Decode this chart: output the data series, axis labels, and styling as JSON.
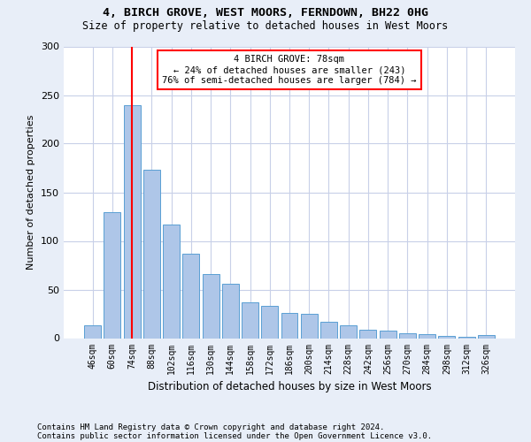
{
  "title1": "4, BIRCH GROVE, WEST MOORS, FERNDOWN, BH22 0HG",
  "title2": "Size of property relative to detached houses in West Moors",
  "xlabel": "Distribution of detached houses by size in West Moors",
  "ylabel": "Number of detached properties",
  "footnote1": "Contains HM Land Registry data © Crown copyright and database right 2024.",
  "footnote2": "Contains public sector information licensed under the Open Government Licence v3.0.",
  "categories": [
    "46sqm",
    "60sqm",
    "74sqm",
    "88sqm",
    "102sqm",
    "116sqm",
    "130sqm",
    "144sqm",
    "158sqm",
    "172sqm",
    "186sqm",
    "200sqm",
    "214sqm",
    "228sqm",
    "242sqm",
    "256sqm",
    "270sqm",
    "284sqm",
    "298sqm",
    "312sqm",
    "326sqm"
  ],
  "values": [
    13,
    130,
    240,
    173,
    117,
    87,
    66,
    56,
    37,
    33,
    26,
    25,
    17,
    13,
    9,
    8,
    5,
    4,
    2,
    1,
    3
  ],
  "bar_color": "#aec6e8",
  "bar_edge_color": "#5a9fd4",
  "vline_x": 2,
  "vline_color": "red",
  "annotation_text": "4 BIRCH GROVE: 78sqm\n← 24% of detached houses are smaller (243)\n76% of semi-detached houses are larger (784) →",
  "annotation_box_color": "white",
  "annotation_box_edge_color": "red",
  "ylim": [
    0,
    300
  ],
  "yticks": [
    0,
    50,
    100,
    150,
    200,
    250,
    300
  ],
  "bg_color": "#e8eef8",
  "plot_bg_color": "white",
  "grid_color": "#c8d0e8"
}
